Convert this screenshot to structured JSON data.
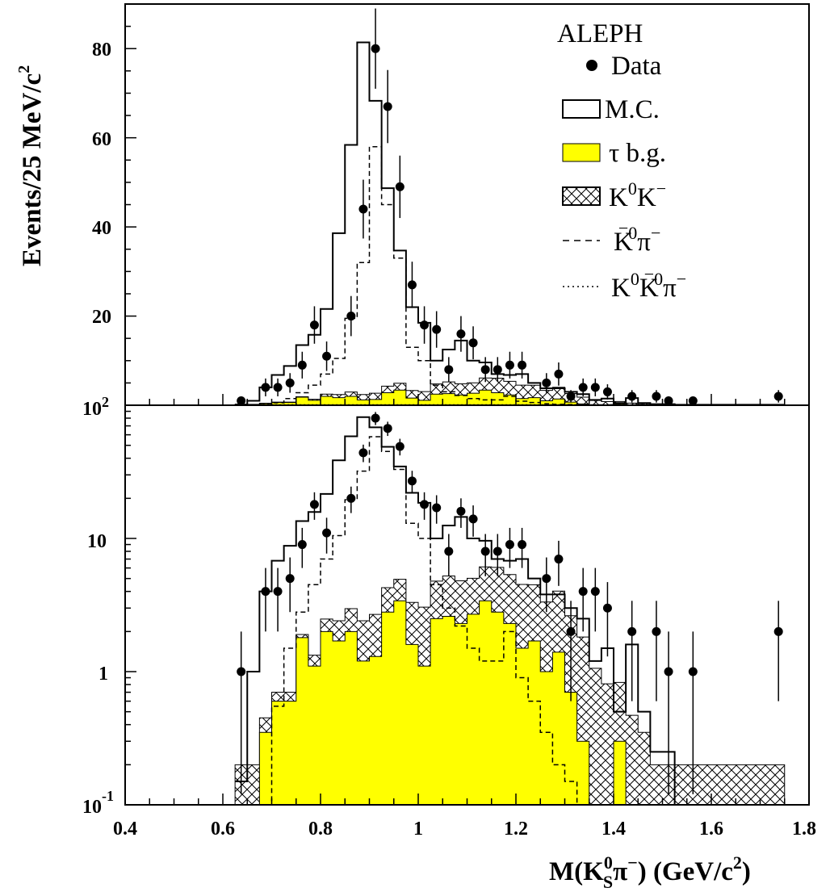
{
  "chart_data": {
    "type": "histogram",
    "experiment_label": "ALEPH",
    "xlabel": "M(K_S^0π^-) (GeV/c^2)",
    "ylabel": "Events/25 MeV/c^2",
    "xlim": [
      0.4,
      1.8
    ],
    "x_ticks": [
      "0.4",
      "0.6",
      "0.8",
      "1",
      "1.2",
      "1.4",
      "1.6",
      "1.8"
    ],
    "legend_placement": "top-right",
    "colors": {
      "tau_bg": "#ffff00",
      "line": "#000000"
    },
    "panels": [
      {
        "name": "top",
        "scale": "linear",
        "ylim": [
          0,
          90
        ],
        "y_ticks": [
          "20",
          "40",
          "60",
          "80"
        ]
      },
      {
        "name": "bottom",
        "scale": "log",
        "ylim": [
          0.1,
          100
        ],
        "y_ticks": [
          "10^-1",
          "1",
          "10",
          "10^2"
        ]
      }
    ],
    "bin_width": 0.025,
    "bin_edges_start": 0.625,
    "series": [
      {
        "name": "Data",
        "style": "points",
        "x": [
          0.6375,
          0.6875,
          0.7125,
          0.7375,
          0.7625,
          0.7875,
          0.8125,
          0.8625,
          0.8875,
          0.9125,
          0.9375,
          0.9625,
          0.9875,
          1.0125,
          1.0375,
          1.0625,
          1.0875,
          1.1125,
          1.1375,
          1.1625,
          1.1875,
          1.2125,
          1.2625,
          1.2875,
          1.3125,
          1.3375,
          1.3625,
          1.3875,
          1.4375,
          1.4875,
          1.5125,
          1.5625,
          1.7375
        ],
        "y": [
          1,
          4,
          4,
          5,
          9,
          18,
          11,
          20,
          44,
          80,
          67,
          49,
          27,
          18,
          17,
          8,
          16,
          14,
          8,
          8,
          9,
          9,
          5,
          7,
          2,
          4,
          4,
          3,
          2,
          2,
          1,
          1,
          2
        ],
        "yerr": [
          1,
          2,
          2,
          2.2,
          3,
          4.2,
          3.3,
          4.5,
          6.6,
          9,
          8.2,
          7,
          5.2,
          4.2,
          4.1,
          2.8,
          4,
          3.7,
          2.8,
          2.8,
          3,
          3,
          2.2,
          2.6,
          1.4,
          2,
          2,
          1.7,
          1.4,
          1.4,
          1,
          1,
          1.4
        ]
      },
      {
        "name": "M.C.",
        "style": "open-histogram",
        "values": [
          0.15,
          1.0,
          4.0,
          6.8,
          8.8,
          13.5,
          15.8,
          21.6,
          38.6,
          58.4,
          81.4,
          68.3,
          48.7,
          34.7,
          22.0,
          18.5,
          10.0,
          12.5,
          14.5,
          10.0,
          9.6,
          7.0,
          6.8,
          7.0,
          5.0,
          3.8,
          3.8,
          3.0,
          2.5,
          1.2,
          1.5,
          0.5,
          1.6,
          0.5,
          0.25,
          0.25,
          0.1,
          0.1,
          0.1,
          0.1,
          0.1,
          0.1,
          0.1,
          0.1,
          0.1
        ]
      },
      {
        "name": "τ b.g.",
        "style": "filled-histogram",
        "values": [
          0.1,
          0.1,
          0.35,
          0.6,
          0.6,
          1.8,
          1.1,
          2.0,
          1.7,
          2.0,
          1.2,
          1.3,
          2.8,
          3.4,
          1.6,
          1.1,
          2.5,
          2.6,
          2.3,
          2.7,
          3.4,
          2.8,
          2.3,
          1.5,
          1.7,
          1.0,
          1.4,
          0.7,
          0.3,
          0.1,
          0.1,
          0.3,
          0.1,
          0.1,
          0.1,
          0.1,
          0.1,
          0.1,
          0.1,
          0.1,
          0.1,
          0.1,
          0.1,
          0.1,
          0.1
        ]
      },
      {
        "name": "K^0K^-",
        "style": "hatched-histogram",
        "values": [
          0.1,
          0.1,
          0.1,
          0.1,
          0.1,
          0.1,
          0.23,
          0.48,
          0.71,
          0.97,
          1.21,
          1.39,
          1.47,
          1.53,
          1.71,
          1.95,
          2.28,
          2.63,
          2.51,
          2.32,
          2.71,
          3.26,
          3.06,
          3.01,
          2.79,
          2.33,
          2.62,
          1.93,
          1.52,
          0.96,
          0.71,
          0.53,
          0.37,
          0.25,
          0.1,
          0.1,
          0.1,
          0.1,
          0.1,
          0.1,
          0.1,
          0.1,
          0.1,
          0.1,
          0.1
        ]
      },
      {
        "name": "K̄^0π^-",
        "style": "dashed-histogram",
        "values": [
          0.1,
          0.1,
          0.1,
          0.55,
          1.5,
          2.8,
          4.5,
          7.0,
          10.5,
          19.5,
          32.0,
          58.0,
          45.0,
          33.0,
          13.0,
          10.0,
          4.5,
          3.0,
          2.2,
          1.5,
          1.2,
          1.2,
          2.0,
          0.9,
          0.6,
          0.35,
          0.2,
          0.15,
          0.1,
          0.1,
          0.1,
          0.1,
          0.1,
          0.1,
          0.1,
          0.1,
          0.1,
          0.1,
          0.1,
          0.1,
          0.1,
          0.1,
          0.1,
          0.1,
          0.1
        ]
      },
      {
        "name": "K^0K̄^0π^-",
        "style": "dotted-histogram",
        "values": [
          0.1,
          0.1,
          0.1,
          0.1,
          0.1,
          0.1,
          0.1,
          0.1,
          0.1,
          0.1,
          0.1,
          0.1,
          0.1,
          0.1,
          0.1,
          0.1,
          0.1,
          0.1,
          0.1,
          0.1,
          0.1,
          0.1,
          0.1,
          0.1,
          0.1,
          0.1,
          0.1,
          0.1,
          0.1,
          0.1,
          0.1,
          0.1,
          0.1,
          0.1,
          0.1,
          0.1,
          0.1,
          0.1,
          0.1,
          0.1,
          0.1,
          0.1,
          0.1,
          0.1,
          0.1
        ]
      }
    ]
  }
}
